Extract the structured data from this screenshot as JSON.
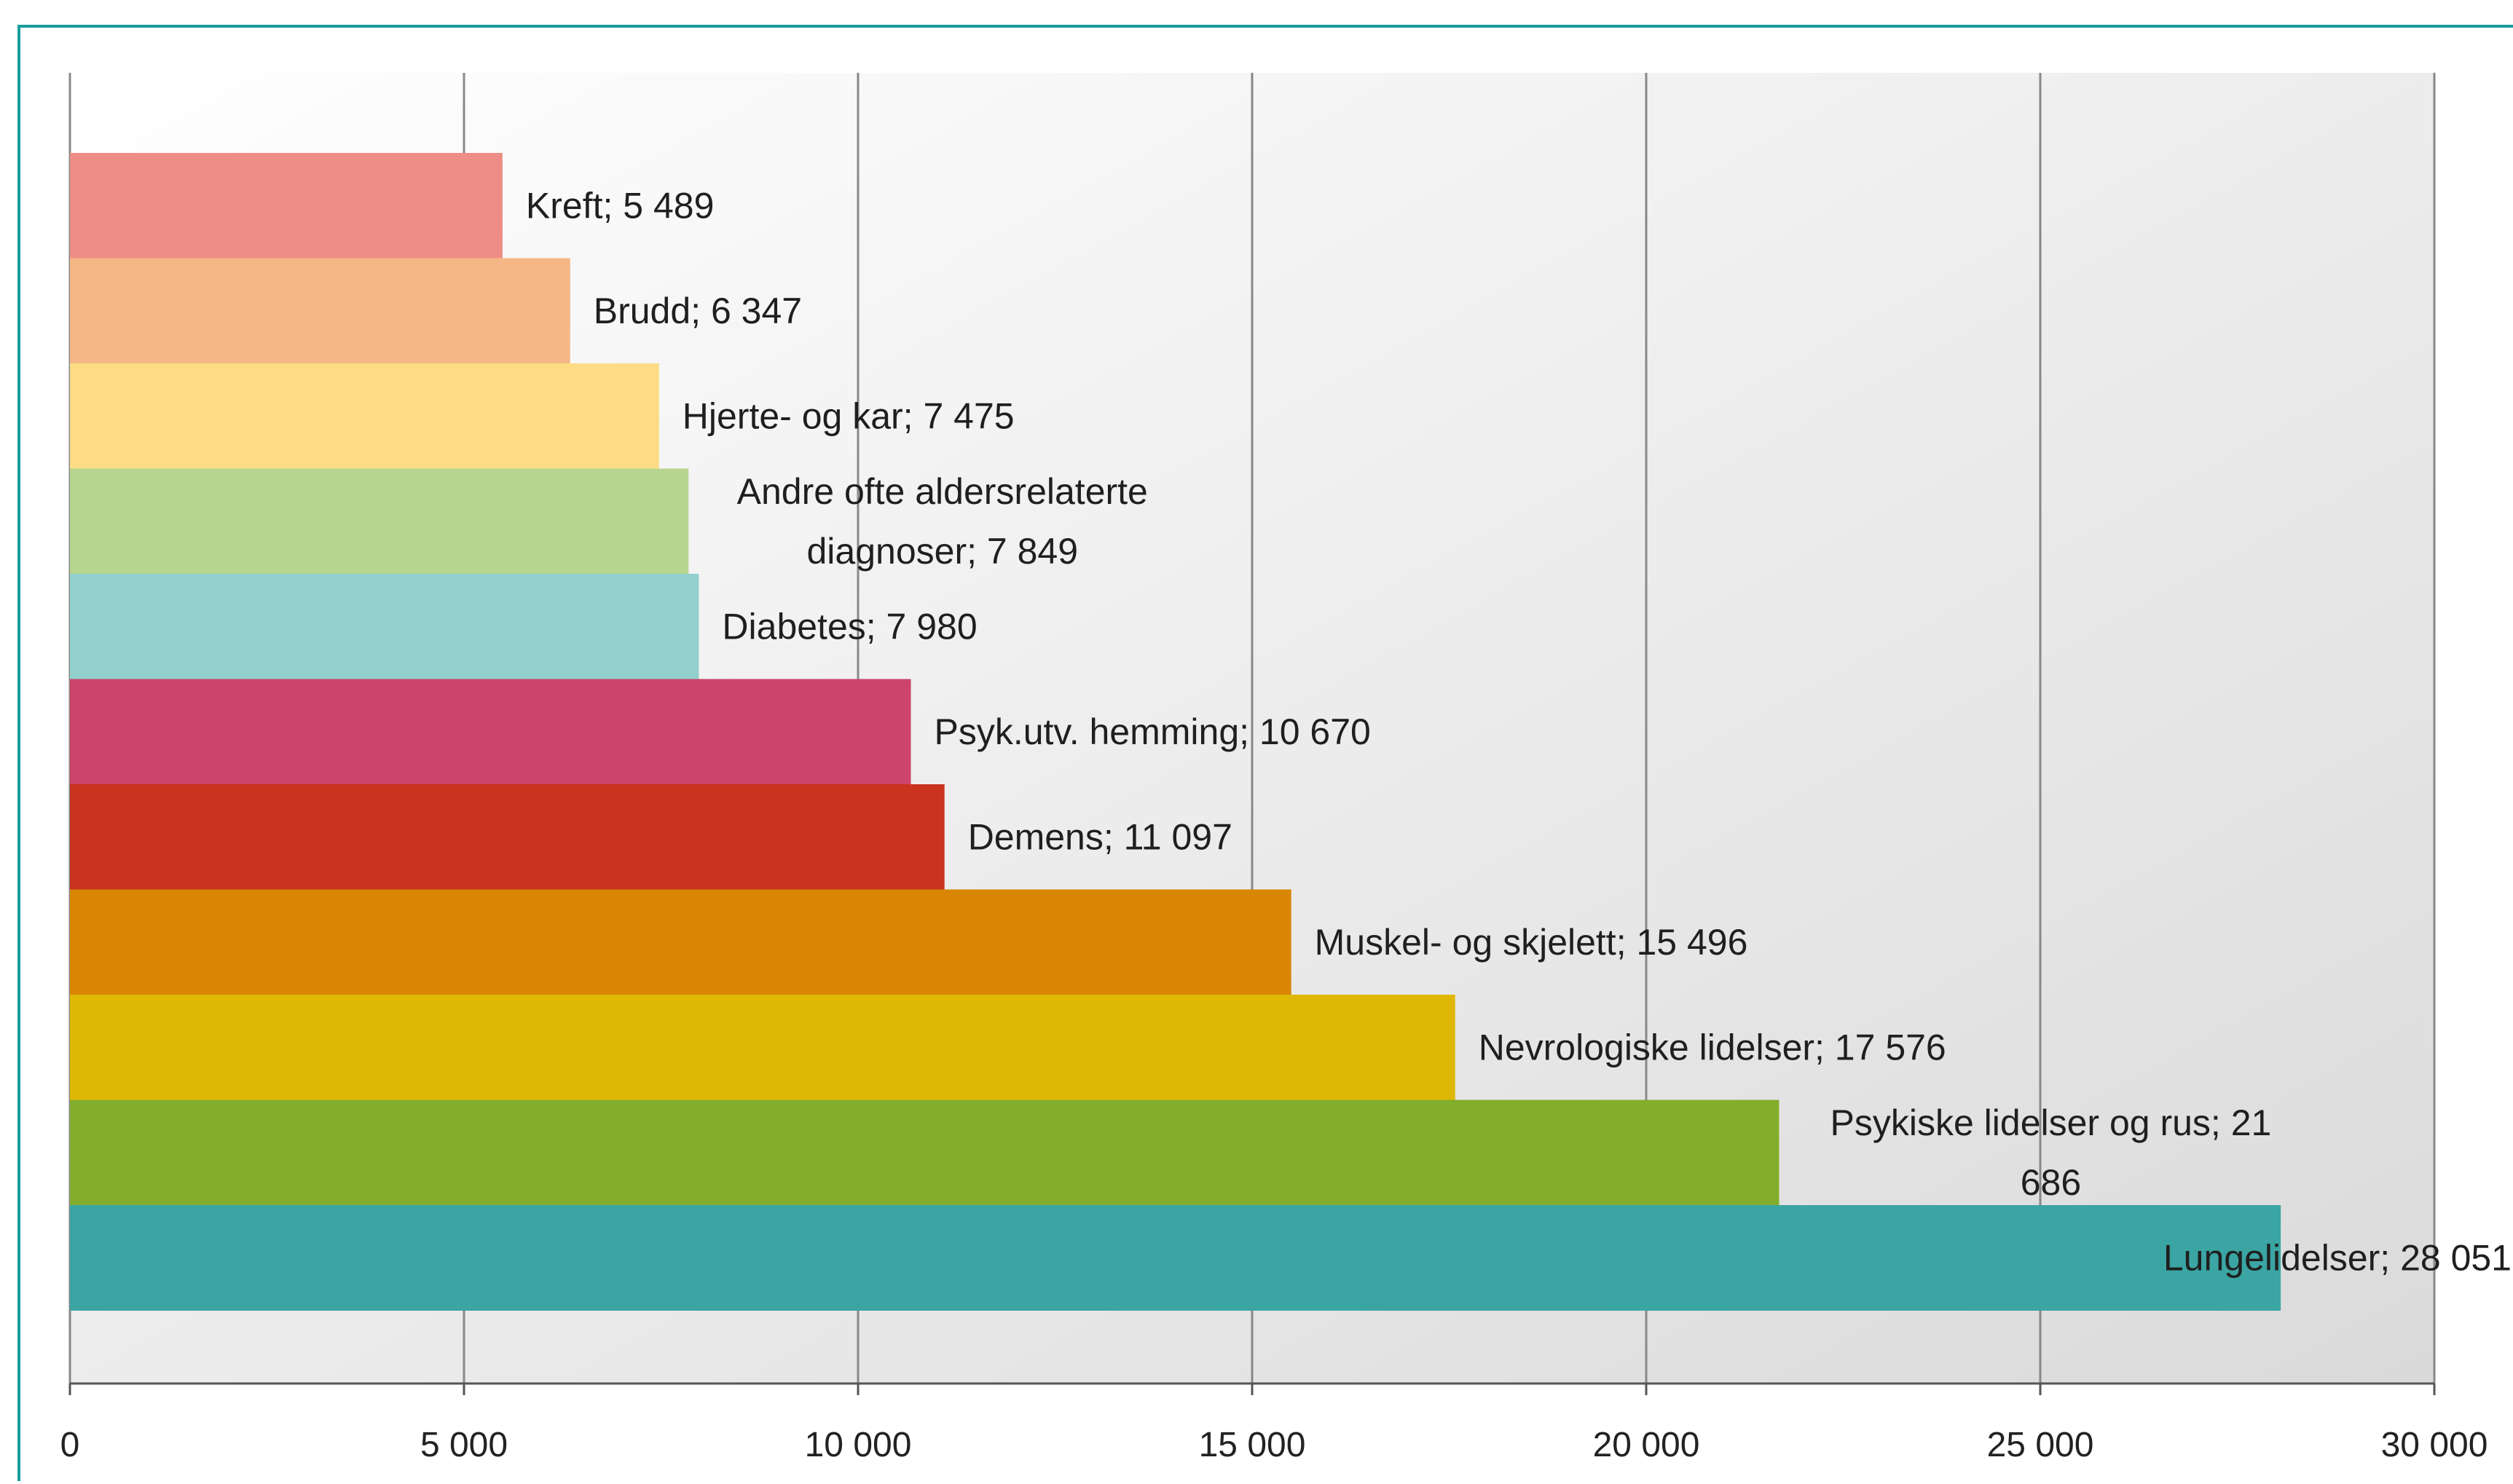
{
  "chart_data": {
    "type": "bar",
    "orientation": "horizontal",
    "grid": true,
    "xlim": [
      0,
      30000
    ],
    "x_ticks": [
      0,
      5000,
      10000,
      15000,
      20000,
      25000,
      30000
    ],
    "x_tick_labels": [
      "0",
      "5 000",
      "10 000",
      "15 000",
      "20 000",
      "25 000",
      "30 000"
    ],
    "categories": [
      "Kreft",
      "Brudd",
      "Hjerte- og kar",
      "Andre ofte aldersrelaterte diagnoser",
      "Diabetes",
      "Psyk.utv. hemming",
      "Demens",
      "Muskel- og skjelett",
      "Nevrologiske lidelser",
      "Psykiske lidelser og rus",
      "Lungelidelser"
    ],
    "values": [
      5489,
      6347,
      7475,
      7849,
      7980,
      10670,
      11097,
      15496,
      17576,
      21686,
      28051
    ],
    "data_labels": [
      [
        "Kreft; 5 489"
      ],
      [
        "Brudd; 6 347"
      ],
      [
        "Hjerte- og kar; 7 475"
      ],
      [
        "Andre ofte aldersrelaterte",
        "diagnoser; 7 849"
      ],
      [
        "Diabetes; 7 980"
      ],
      [
        "Psyk.utv. hemming; 10 670"
      ],
      [
        "Demens; 11 097"
      ],
      [
        "Muskel- og skjelett; 15 496"
      ],
      [
        "Nevrologiske lidelser; 17 576"
      ],
      [
        "Psykiske lidelser og rus; 21",
        "686"
      ],
      [
        "Lungelidelser; 28 051"
      ]
    ],
    "colors": [
      "#ee8d85",
      "#f4b785",
      "#fedc86",
      "#b6d58e",
      "#93d0cd",
      "#cc4469",
      "#c93320",
      "#d98605",
      "#dfb806",
      "#82ad2d",
      "#3aa5a3"
    ],
    "plot_background_gradient": [
      "#ffffff",
      "#dadada"
    ],
    "gridline_color": "#888888"
  }
}
